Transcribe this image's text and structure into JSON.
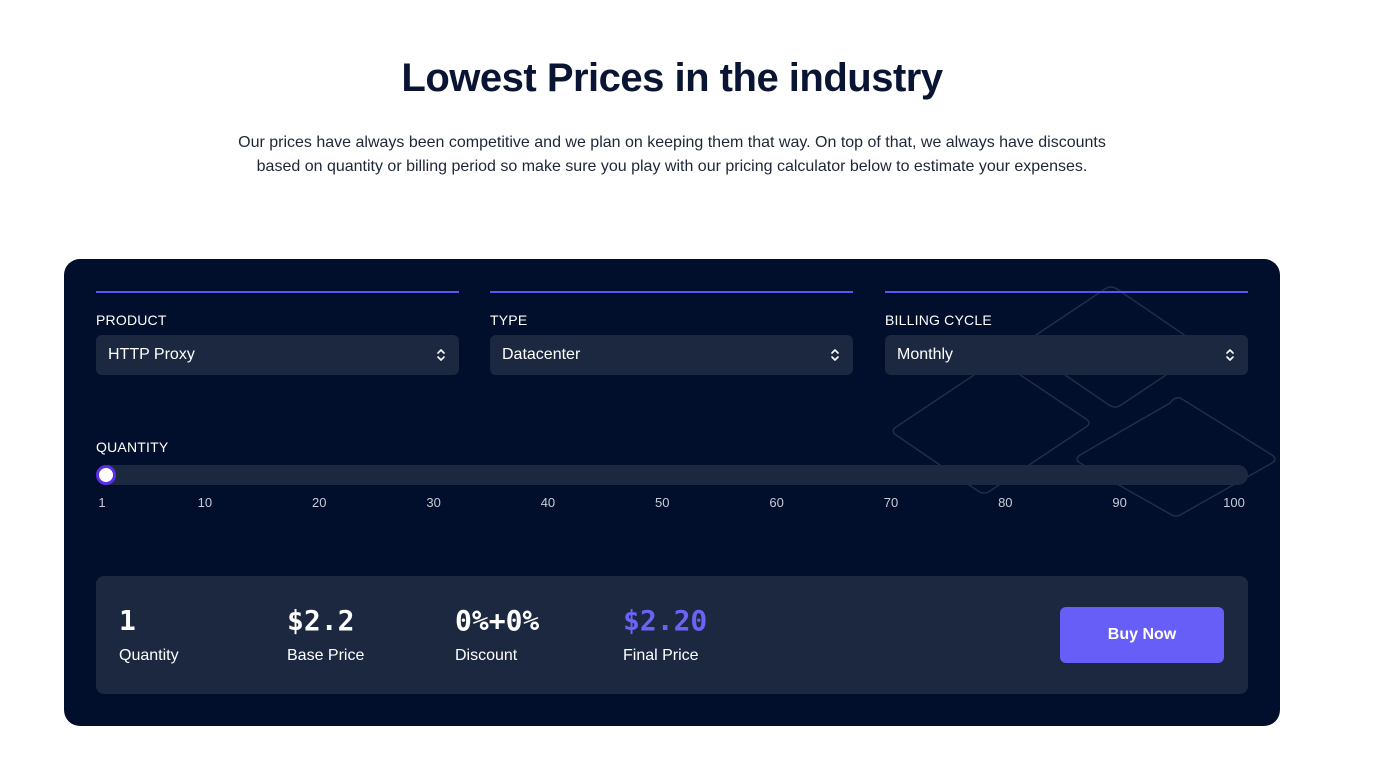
{
  "header": {
    "title": "Lowest Prices in the industry",
    "intro_line1": "Our prices have always been competitive and we plan on keeping them that way. On top of that, we always have discounts",
    "intro_line2": "based on quantity or billing period so make sure you play with our pricing calculator below to estimate your expenses."
  },
  "calculator": {
    "product": {
      "label": "PRODUCT",
      "value": "HTTP Proxy"
    },
    "type": {
      "label": "TYPE",
      "value": "Datacenter"
    },
    "billing": {
      "label": "BILLING CYCLE",
      "value": "Monthly"
    },
    "quantity": {
      "label": "QUANTITY",
      "min": 1,
      "max": 100,
      "value": 1,
      "ticks": [
        "1",
        "10",
        "20",
        "30",
        "40",
        "50",
        "60",
        "70",
        "80",
        "90",
        "100"
      ]
    },
    "summary": {
      "quantity": {
        "value": "1",
        "caption": "Quantity"
      },
      "base_price": {
        "value": "$2.2",
        "caption": "Base Price"
      },
      "discount": {
        "value": "0%+0%",
        "caption": "Discount"
      },
      "final_price": {
        "value": "$2.20",
        "caption": "Final Price"
      }
    },
    "buy_label": "Buy Now"
  },
  "colors": {
    "panel_bg": "#020f2c",
    "field_bg": "#1b2840",
    "accent": "#665ef6",
    "heading": "#0a1433"
  },
  "icons": {
    "select_chevron": "chevron-up-down-icon",
    "decoration": "diamond-outline-pattern"
  }
}
